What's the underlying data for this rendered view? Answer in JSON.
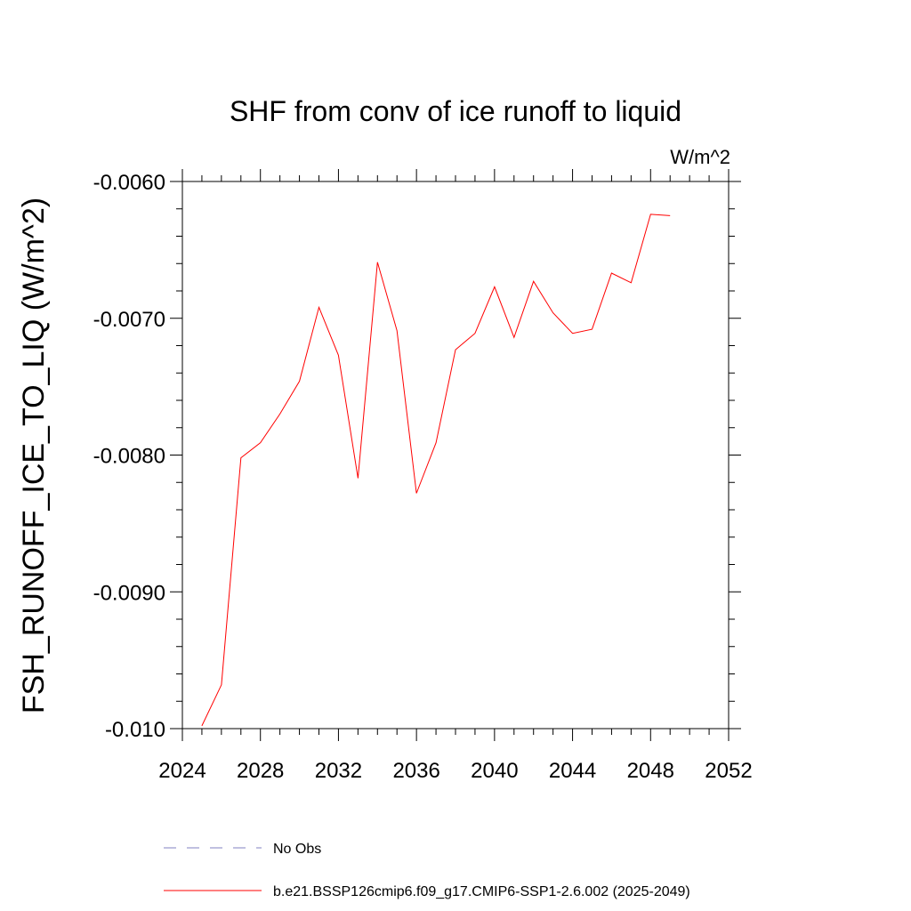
{
  "chart_data": {
    "type": "line",
    "title": "SHF from conv of ice runoff to liquid",
    "units_label": "W/m^2",
    "ylabel": "FSH_RUNOFF_ICE_TO_LIQ  (W/m^2)",
    "xlabel": "",
    "xlim": [
      2024,
      2052
    ],
    "ylim": [
      -0.01,
      -0.006
    ],
    "xticks": [
      2024,
      2028,
      2032,
      2036,
      2040,
      2044,
      2048,
      2052
    ],
    "xtick_labels": [
      "2024",
      "2028",
      "2032",
      "2036",
      "2040",
      "2044",
      "2048",
      "2052"
    ],
    "yticks": [
      -0.01,
      -0.009,
      -0.008,
      -0.007,
      -0.006
    ],
    "ytick_labels": [
      "-0.010",
      "-0.0090",
      "-0.0080",
      "-0.0070",
      "-0.0060"
    ],
    "grid": false,
    "series": [
      {
        "name": "b.e21.BSSP126cmip6.f09_g17.CMIP6-SSP1-2.6.002 (2025-2049)",
        "color": "#ff0000",
        "x": [
          2025,
          2026,
          2027,
          2028,
          2029,
          2030,
          2031,
          2032,
          2033,
          2034,
          2035,
          2036,
          2037,
          2038,
          2039,
          2040,
          2041,
          2042,
          2043,
          2044,
          2045,
          2046,
          2047,
          2048,
          2049
        ],
        "y": [
          -0.00998,
          -0.00968,
          -0.00802,
          -0.00791,
          -0.0077,
          -0.00746,
          -0.00692,
          -0.00727,
          -0.00817,
          -0.00659,
          -0.00709,
          -0.00828,
          -0.00791,
          -0.00723,
          -0.00711,
          -0.00677,
          -0.00714,
          -0.00673,
          -0.00696,
          -0.00711,
          -0.00708,
          -0.00667,
          -0.00674,
          -0.00624,
          -0.00625
        ]
      }
    ],
    "legend": {
      "position": "bottom",
      "entries": [
        {
          "label": "No Obs",
          "style": "dashed",
          "color": "#8080c0"
        },
        {
          "label": "b.e21.BSSP126cmip6.f09_g17.CMIP6-SSP1-2.6.002 (2025-2049)",
          "style": "solid",
          "color": "#ff0000"
        }
      ]
    }
  }
}
